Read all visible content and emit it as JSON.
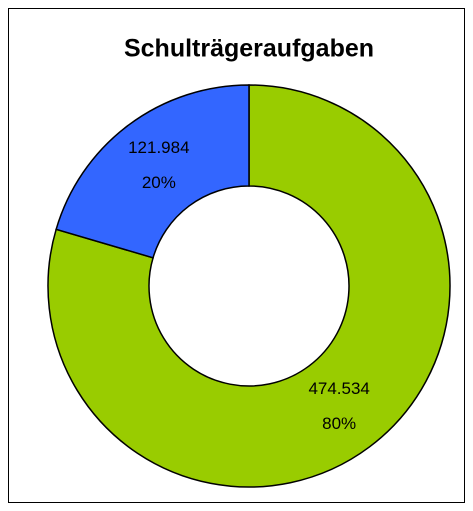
{
  "chart_data": {
    "type": "donut",
    "title": "Schulträgeraufgaben",
    "values": [
      474534,
      121984
    ],
    "value_labels": [
      "474.534",
      "121.984"
    ],
    "percents": [
      80,
      20
    ],
    "percent_labels": [
      "80%",
      "20%"
    ],
    "colors": [
      "#99cc00",
      "#3366ff"
    ]
  }
}
